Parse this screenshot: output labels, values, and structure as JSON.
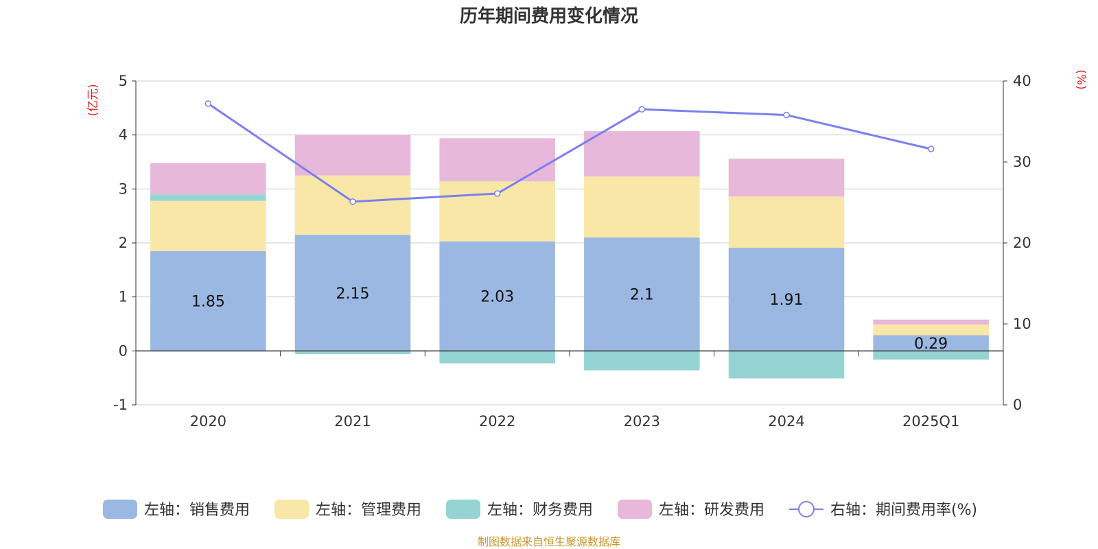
{
  "chart_data": {
    "type": "bar",
    "title": "历年期间费用变化情况",
    "categories": [
      "2020",
      "2021",
      "2022",
      "2023",
      "2024",
      "2025Q1"
    ],
    "left_axis": {
      "unit": "(亿元)",
      "ylim": [
        -1,
        5
      ],
      "ticks": [
        -1,
        0,
        1,
        2,
        3,
        4,
        5
      ],
      "tick_labels": [
        "-1",
        "0",
        "1",
        "2",
        "3",
        "4",
        "5"
      ]
    },
    "right_axis": {
      "unit": "(%)",
      "ylim": [
        0,
        40
      ],
      "ticks": [
        0,
        10,
        20,
        30,
        40
      ],
      "tick_labels": [
        "0",
        "10",
        "20",
        "30",
        "40"
      ]
    },
    "series": [
      {
        "name": "左轴：销售费用",
        "type": "bar",
        "axis": "left",
        "color": "#9BB8E2",
        "values": [
          1.85,
          2.15,
          2.03,
          2.1,
          1.91,
          0.29
        ],
        "labels": [
          "1.85",
          "2.15",
          "2.03",
          "2.1",
          "1.91",
          "0.29"
        ]
      },
      {
        "name": "左轴：管理费用",
        "type": "bar",
        "axis": "left",
        "color": "#F8E7A6",
        "values": [
          0.93,
          1.1,
          1.11,
          1.13,
          0.95,
          0.2
        ]
      },
      {
        "name": "左轴：财务费用",
        "type": "bar",
        "axis": "left",
        "color": "#96D4D4",
        "values": [
          0.12,
          -0.06,
          -0.23,
          -0.36,
          -0.51,
          -0.16
        ]
      },
      {
        "name": "左轴：研发费用",
        "type": "bar",
        "axis": "left",
        "color": "#E7B8DA",
        "values": [
          0.58,
          0.75,
          0.8,
          0.84,
          0.7,
          0.09
        ]
      },
      {
        "name": "右轴：期间费用率(%)",
        "type": "line",
        "axis": "right",
        "color": "#7B7FEF",
        "values": [
          37.2,
          25.1,
          26.1,
          36.5,
          35.8,
          31.6
        ]
      }
    ],
    "legend_position": "bottom",
    "grid": true
  },
  "footer": {
    "source": "制图数据来自恒生聚源数据库"
  },
  "colors": {
    "axis_unit": "#E02020",
    "source": "#C8962E",
    "grid": "#CCCCCC",
    "axis": "#333333"
  }
}
